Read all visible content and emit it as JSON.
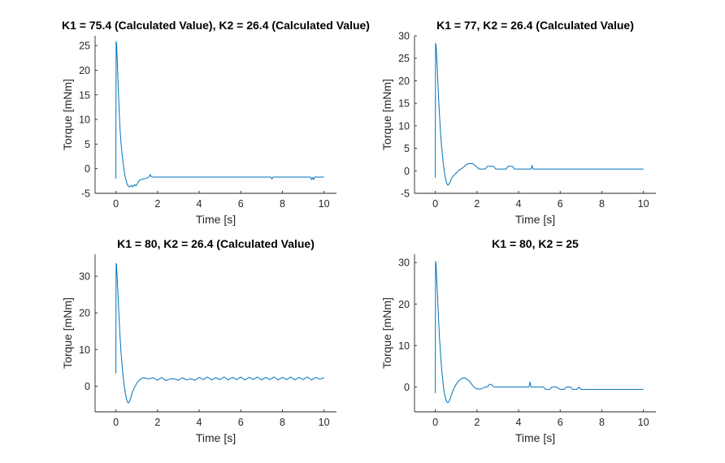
{
  "chart_data": [
    {
      "type": "line",
      "title": "K1 = 75.4 (Calculated Value), K2 = 26.4 (Calculated Value)",
      "xlabel": "Time [s]",
      "ylabel": "Torque [mNm]",
      "xlim": [
        -1,
        10.6
      ],
      "ylim": [
        -5,
        27
      ],
      "xticks": [
        0,
        2,
        4,
        6,
        8,
        10
      ],
      "yticks": [
        -5,
        0,
        5,
        10,
        15,
        20,
        25
      ],
      "grid": false,
      "color": "#0072bd",
      "series": [
        {
          "x": [
            0.0,
            0.0,
            0.01,
            0.03,
            0.05,
            0.08,
            0.12,
            0.16,
            0.2,
            0.25,
            0.3,
            0.35,
            0.4,
            0.45,
            0.5,
            0.55,
            0.6,
            0.65,
            0.7,
            0.75,
            0.8,
            0.85,
            0.9,
            0.95,
            1.0,
            1.05,
            1.1,
            1.2,
            1.3,
            1.4,
            1.5,
            1.6,
            1.65,
            1.7,
            1.75,
            1.8,
            2.0,
            7.45,
            7.5,
            7.55,
            9.35,
            9.4,
            9.45,
            9.5,
            9.55,
            10.0
          ],
          "y": [
            -2.0,
            5.0,
            25.8,
            25.5,
            23.5,
            20.0,
            15.5,
            11.5,
            8.0,
            5.0,
            2.8,
            1.0,
            -0.5,
            -1.7,
            -2.6,
            -3.2,
            -3.6,
            -3.7,
            -3.6,
            -3.4,
            -3.7,
            -3.5,
            -3.2,
            -3.5,
            -3.3,
            -2.9,
            -2.5,
            -2.2,
            -2.1,
            -2.0,
            -1.9,
            -1.6,
            -1.2,
            -1.6,
            -1.7,
            -1.7,
            -1.7,
            -1.7,
            -2.1,
            -1.7,
            -1.7,
            -2.2,
            -1.8,
            -2.2,
            -1.7,
            -1.7
          ]
        }
      ]
    },
    {
      "type": "line",
      "title": "K1 = 77, K2 = 26.4 (Calculated Value)",
      "xlabel": "Time [s]",
      "ylabel": "Torque [mNm]",
      "xlim": [
        -1,
        10.6
      ],
      "ylim": [
        -5,
        30
      ],
      "xticks": [
        0,
        2,
        4,
        6,
        8,
        10
      ],
      "yticks": [
        -5,
        0,
        5,
        10,
        15,
        20,
        25,
        30
      ],
      "grid": false,
      "color": "#0072bd",
      "series": [
        {
          "x": [
            0.0,
            0.0,
            0.01,
            0.03,
            0.06,
            0.1,
            0.15,
            0.2,
            0.25,
            0.3,
            0.35,
            0.4,
            0.45,
            0.5,
            0.55,
            0.6,
            0.65,
            0.7,
            0.75,
            0.8,
            0.9,
            1.0,
            1.1,
            1.2,
            1.3,
            1.4,
            1.5,
            1.6,
            1.7,
            1.8,
            1.9,
            2.0,
            2.1,
            2.2,
            2.3,
            2.4,
            2.5,
            2.6,
            2.8,
            2.9,
            3.0,
            3.2,
            3.4,
            3.5,
            3.7,
            3.8,
            3.9,
            4.0,
            4.6,
            4.65,
            4.7,
            5.0,
            10.0
          ],
          "y": [
            -1.5,
            5.0,
            28.3,
            28.0,
            26.0,
            22.0,
            17.0,
            12.5,
            8.5,
            5.5,
            3.0,
            1.0,
            -0.8,
            -2.0,
            -2.8,
            -3.2,
            -3.0,
            -2.6,
            -2.0,
            -1.5,
            -1.0,
            -0.5,
            0.0,
            0.3,
            0.6,
            1.0,
            1.4,
            1.6,
            1.6,
            1.6,
            1.2,
            0.8,
            0.4,
            0.4,
            0.4,
            0.4,
            1.0,
            1.0,
            1.0,
            0.4,
            0.4,
            0.4,
            0.4,
            1.0,
            1.0,
            0.4,
            0.4,
            0.4,
            0.4,
            1.2,
            0.4,
            0.4,
            0.4
          ]
        }
      ]
    },
    {
      "type": "line",
      "title": "K1 = 80, K2 = 26.4 (Calculated Value)",
      "xlabel": "Time [s]",
      "ylabel": "Torque [mNm]",
      "xlim": [
        -1,
        10.6
      ],
      "ylim": [
        -7,
        36
      ],
      "xticks": [
        0,
        2,
        4,
        6,
        8,
        10
      ],
      "yticks": [
        0,
        10,
        20,
        30
      ],
      "grid": false,
      "color": "#0072bd",
      "series": [
        {
          "x": [
            0.0,
            0.0,
            0.01,
            0.03,
            0.06,
            0.1,
            0.15,
            0.2,
            0.25,
            0.3,
            0.35,
            0.4,
            0.45,
            0.5,
            0.55,
            0.6,
            0.65,
            0.7,
            0.75,
            0.8,
            0.9,
            1.0,
            1.1,
            1.2,
            1.3,
            1.4,
            1.6,
            1.8,
            2.0,
            2.2,
            2.4,
            2.6,
            2.8,
            3.0,
            3.2,
            3.4,
            3.6,
            3.8,
            4.0,
            4.2,
            4.4,
            4.6,
            4.8,
            5.0,
            5.2,
            5.4,
            5.6,
            5.8,
            6.0,
            6.2,
            6.4,
            6.6,
            6.8,
            7.0,
            7.2,
            7.4,
            7.6,
            7.8,
            8.0,
            8.2,
            8.4,
            8.6,
            8.8,
            9.0,
            9.2,
            9.4,
            9.6,
            9.8,
            10.0
          ],
          "y": [
            3.5,
            10.0,
            33.5,
            33.0,
            30.0,
            25.0,
            19.0,
            13.5,
            9.0,
            5.5,
            2.5,
            0.2,
            -1.8,
            -3.3,
            -4.3,
            -4.6,
            -4.2,
            -3.5,
            -2.5,
            -1.5,
            -0.3,
            0.8,
            1.5,
            2.0,
            2.3,
            2.2,
            2.0,
            2.3,
            1.6,
            2.4,
            1.5,
            2.0,
            2.0,
            1.6,
            2.3,
            1.7,
            2.0,
            1.6,
            2.4,
            1.8,
            2.5,
            1.7,
            2.3,
            1.8,
            2.5,
            1.7,
            2.4,
            1.8,
            2.5,
            1.7,
            2.4,
            1.8,
            2.5,
            1.7,
            2.4,
            1.8,
            2.5,
            1.7,
            2.4,
            1.8,
            2.5,
            1.7,
            2.4,
            1.8,
            2.5,
            1.7,
            2.4,
            1.9,
            2.3
          ]
        }
      ]
    },
    {
      "type": "line",
      "title": "K1 = 80, K2 = 25",
      "xlabel": "Time [s]",
      "ylabel": "Torque [mNm]",
      "xlim": [
        -1,
        10.6
      ],
      "ylim": [
        -6,
        32
      ],
      "xticks": [
        0,
        2,
        4,
        6,
        8,
        10
      ],
      "yticks": [
        0,
        10,
        20,
        30
      ],
      "grid": false,
      "color": "#0072bd",
      "series": [
        {
          "x": [
            0.0,
            0.0,
            0.01,
            0.03,
            0.06,
            0.1,
            0.15,
            0.2,
            0.25,
            0.3,
            0.35,
            0.4,
            0.45,
            0.5,
            0.55,
            0.6,
            0.65,
            0.7,
            0.75,
            0.8,
            0.9,
            1.0,
            1.1,
            1.2,
            1.3,
            1.4,
            1.5,
            1.6,
            1.7,
            1.8,
            1.9,
            2.0,
            2.2,
            2.4,
            2.5,
            2.6,
            2.7,
            2.8,
            3.0,
            3.5,
            4.0,
            4.5,
            4.55,
            4.6,
            5.0,
            5.2,
            5.3,
            5.5,
            5.6,
            5.8,
            6.0,
            6.2,
            6.3,
            6.5,
            6.6,
            6.8,
            6.9,
            7.0,
            10.0
          ],
          "y": [
            -1.5,
            5.0,
            30.3,
            29.8,
            27.0,
            22.5,
            17.0,
            12.0,
            8.0,
            4.5,
            2.0,
            -0.3,
            -1.8,
            -2.9,
            -3.6,
            -3.8,
            -3.6,
            -3.0,
            -2.3,
            -1.5,
            -0.3,
            0.6,
            1.3,
            1.8,
            2.1,
            2.2,
            1.9,
            1.6,
            1.0,
            0.3,
            -0.2,
            -0.5,
            -0.5,
            0.0,
            0.0,
            0.6,
            0.6,
            0.0,
            0.0,
            0.0,
            0.0,
            0.0,
            1.2,
            0.0,
            0.0,
            0.0,
            -0.6,
            -0.6,
            0.0,
            0.0,
            -0.6,
            -0.6,
            0.0,
            0.0,
            -0.6,
            -0.6,
            0.0,
            -0.6,
            -0.6
          ]
        }
      ]
    }
  ]
}
